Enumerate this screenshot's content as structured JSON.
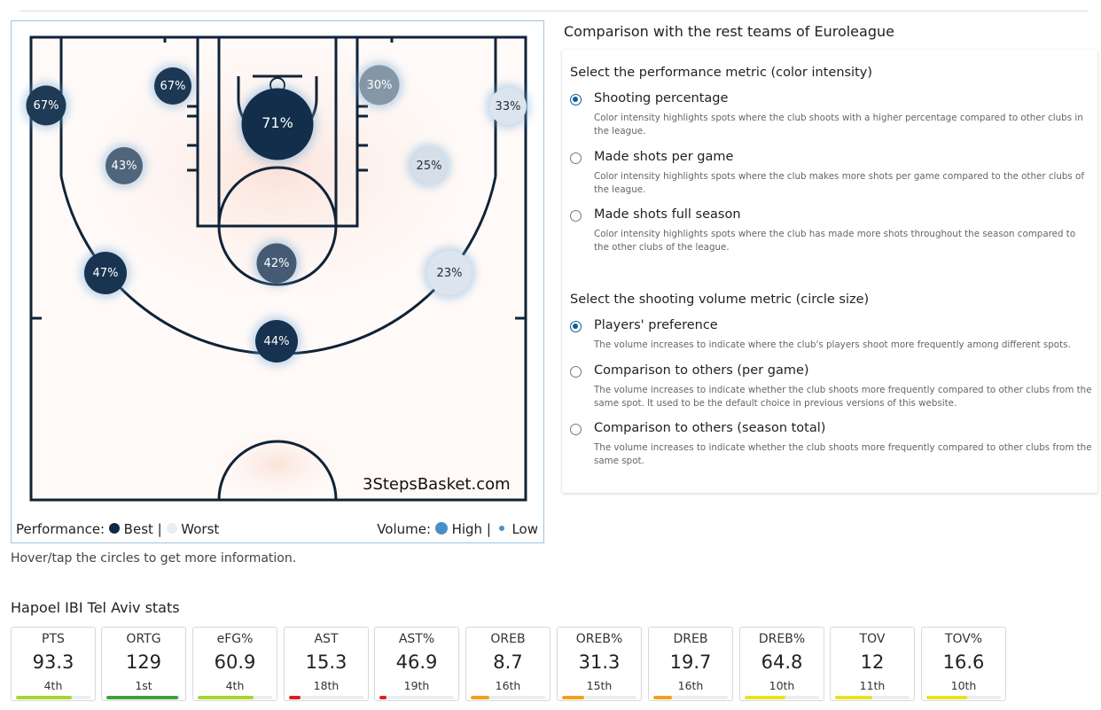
{
  "court": {
    "watermark": "3StepsBasket.com",
    "spots": [
      {
        "label": "71%",
        "perf": 0.98,
        "vol": 0.95
      },
      {
        "label": "67%",
        "perf": 0.93,
        "vol": 0.3
      },
      {
        "label": "67%",
        "perf": 0.92,
        "vol": 0.35
      },
      {
        "label": "30%",
        "perf": 0.45,
        "vol": 0.35
      },
      {
        "label": "33%",
        "perf": 0.05,
        "vol": 0.3
      },
      {
        "label": "43%",
        "perf": 0.7,
        "vol": 0.3
      },
      {
        "label": "25%",
        "perf": 0.08,
        "vol": 0.28
      },
      {
        "label": "47%",
        "perf": 0.95,
        "vol": 0.4
      },
      {
        "label": "42%",
        "perf": 0.75,
        "vol": 0.35
      },
      {
        "label": "23%",
        "perf": 0.05,
        "vol": 0.45
      },
      {
        "label": "44%",
        "perf": 0.96,
        "vol": 0.4
      }
    ],
    "legend": {
      "performance_label": "Performance:",
      "best": "Best |",
      "worst": "Worst",
      "volume_label": "Volume:",
      "high": "High |",
      "low": "Low"
    },
    "hint": "Hover/tap the circles to get more information."
  },
  "comparison": {
    "title": "Comparison with the rest teams of Euroleague",
    "performance_group": {
      "title": "Select the performance metric (color intensity)",
      "options": [
        {
          "label": "Shooting percentage",
          "checked": true,
          "desc": "Color intensity highlights spots where the club shoots with a higher percentage compared to other clubs in the league."
        },
        {
          "label": "Made shots per game",
          "checked": false,
          "desc": "Color intensity highlights spots where the club makes more shots per game compared to the other clubs of the league."
        },
        {
          "label": "Made shots full season",
          "checked": false,
          "desc": "Color intensity highlights spots where the club has made more shots throughout the season compared to the other clubs of the league."
        }
      ]
    },
    "volume_group": {
      "title": "Select the shooting volume metric (circle size)",
      "options": [
        {
          "label": "Players' preference",
          "checked": true,
          "desc": "The volume increases to indicate where the club's players shoot more frequently among different spots."
        },
        {
          "label": "Comparison to others (per game)",
          "checked": false,
          "desc": "The volume increases to indicate whether the club shoots more frequently compared to other clubs from the same spot. It used to be the default choice in previous versions of this website."
        },
        {
          "label": "Comparison to others (season total)",
          "checked": false,
          "desc": "The volume increases to indicate whether the club shoots more frequently compared to other clubs from the same spot."
        }
      ]
    }
  },
  "stats": {
    "title": "Hapoel IBI Tel Aviv stats",
    "items": [
      {
        "label": "PTS",
        "value": "93.3",
        "rank": "4th",
        "fill": 0.75,
        "color": "#a6d62f"
      },
      {
        "label": "ORTG",
        "value": "129",
        "rank": "1st",
        "fill": 0.97,
        "color": "#3da23a"
      },
      {
        "label": "eFG%",
        "value": "60.9",
        "rank": "4th",
        "fill": 0.75,
        "color": "#a6d62f"
      },
      {
        "label": "AST",
        "value": "15.3",
        "rank": "18th",
        "fill": 0.15,
        "color": "#e0201b"
      },
      {
        "label": "AST%",
        "value": "46.9",
        "rank": "19th",
        "fill": 0.1,
        "color": "#e0201b"
      },
      {
        "label": "OREB",
        "value": "8.7",
        "rank": "16th",
        "fill": 0.25,
        "color": "#f2a21a"
      },
      {
        "label": "OREB%",
        "value": "31.3",
        "rank": "15th",
        "fill": 0.3,
        "color": "#f2a21a"
      },
      {
        "label": "DREB",
        "value": "19.7",
        "rank": "16th",
        "fill": 0.25,
        "color": "#f2a21a"
      },
      {
        "label": "DREB%",
        "value": "64.8",
        "rank": "10th",
        "fill": 0.55,
        "color": "#e8e21f"
      },
      {
        "label": "TOV",
        "value": "12",
        "rank": "11th",
        "fill": 0.5,
        "color": "#e8e21f"
      },
      {
        "label": "TOV%",
        "value": "16.6",
        "rank": "10th",
        "fill": 0.55,
        "color": "#e8e21f"
      }
    ]
  },
  "colors": {
    "best": "#0e2a47",
    "worst": "#e7eef6",
    "volume": "#4a8ec7",
    "court_lines": "#0f2338",
    "heat": "#fbe5dc"
  }
}
